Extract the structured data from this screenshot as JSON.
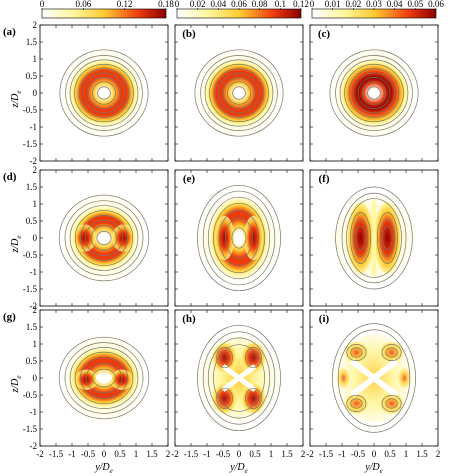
{
  "figure": {
    "panel_labels": [
      "(a)",
      "(b)",
      "(c)",
      "(d)",
      "(e)",
      "(f)",
      "(g)",
      "(h)",
      "(i)"
    ],
    "ylabel": {
      "main": "z/D",
      "sub": "e"
    },
    "xlabel": {
      "main": "y/D",
      "sub": "e"
    },
    "axis_ticks": [
      "-2",
      "-1.5",
      "-1",
      "-0.5",
      "0",
      "0.5",
      "1",
      "1.5",
      "2"
    ],
    "colors": {
      "low": "#ffffff",
      "mid1": "#fff7a0",
      "mid2": "#ffcc33",
      "mid3": "#ee3a0c",
      "high": "#8b0000",
      "contour": "#777766"
    }
  },
  "colorbars": [
    {
      "ticks": [
        "0",
        "0.06",
        "0.12",
        "0.18"
      ],
      "max": 0.18
    },
    {
      "ticks": [
        "0",
        "0.02",
        "0.04",
        "0.06",
        "0.08",
        "0.1",
        "0.12"
      ],
      "max": 0.12
    },
    {
      "ticks": [
        "0",
        "0.01",
        "0.02",
        "0.03",
        "0.04",
        "0.05",
        "0.06"
      ],
      "max": 0.06
    }
  ],
  "chart_data": {
    "type": "heatmap",
    "xlim": [
      -2,
      2
    ],
    "ylim": [
      -2,
      2
    ],
    "panels": [
      {
        "label": "(a)",
        "pattern": "ring"
      },
      {
        "label": "(b)",
        "pattern": "ring"
      },
      {
        "label": "(c)",
        "pattern": "ring"
      },
      {
        "label": "(d)",
        "pattern": "ring-lobed"
      },
      {
        "label": "(e)",
        "pattern": "ellipse-vertical"
      },
      {
        "label": "(f)",
        "pattern": "split-vertical"
      },
      {
        "label": "(g)",
        "pattern": "ring-lobed-horizontal"
      },
      {
        "label": "(h)",
        "pattern": "four-lobe"
      },
      {
        "label": "(i)",
        "pattern": "x-shape"
      }
    ]
  }
}
